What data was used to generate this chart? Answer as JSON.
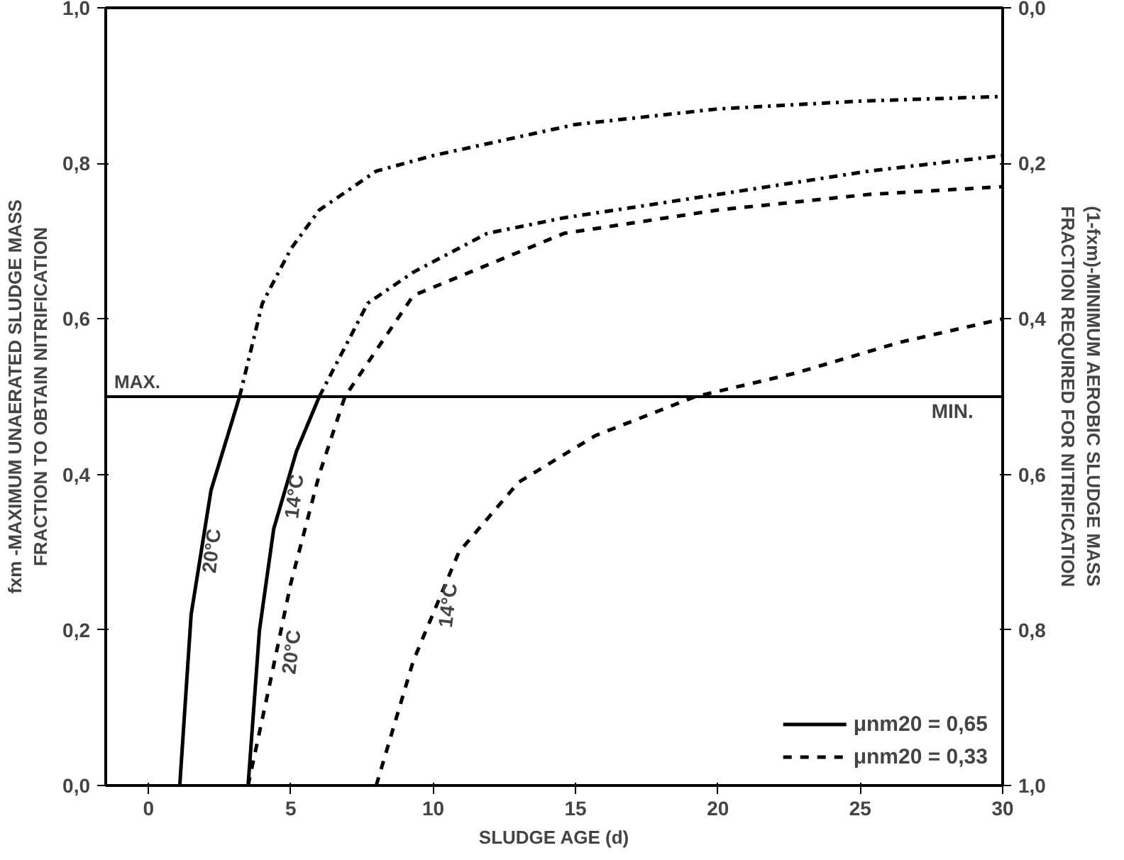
{
  "chart_data": {
    "type": "line",
    "xlabel": "SLUDGE AGE (d)",
    "ylabel": "fxm -MAXIMUM UNAERATED SLUDGE MASS\nFRACTION TO OBTAIN NITRIFICATION",
    "y2label": "(1-fxm)-MINIMUM AEROBIC SLUDGE MASS\nFRACTION REQUIRED FOR NITRIFICATION",
    "xlim": [
      -1.5,
      30
    ],
    "xticks": [
      0,
      5,
      10,
      15,
      20,
      25,
      30
    ],
    "ylim": [
      0,
      1.0
    ],
    "yticks": [
      {
        "value": 0,
        "label": "0,0"
      },
      {
        "value": 0.2,
        "label": "0,2"
      },
      {
        "value": 0.4,
        "label": "0,4"
      },
      {
        "value": 0.6,
        "label": "0,6"
      },
      {
        "value": 0.8,
        "label": "0,8"
      },
      {
        "value": 1.0,
        "label": "1,0"
      }
    ],
    "y2lim": [
      1.0,
      0
    ],
    "y2ticks": [
      {
        "value": 0,
        "label": "0,0"
      },
      {
        "value": 0.2,
        "label": "0,2"
      },
      {
        "value": 0.4,
        "label": "0,4"
      },
      {
        "value": 0.6,
        "label": "0,6"
      },
      {
        "value": 0.8,
        "label": "0,8"
      },
      {
        "value": 1.0,
        "label": "1,0"
      }
    ],
    "grid": false,
    "legend": "bottom right",
    "series": [
      {
        "name": "μnm20 = 0,65",
        "color": "#000000",
        "line_style": "solid",
        "x": [
          1.1,
          1.5,
          2.2,
          3.2
        ],
        "values": [
          0,
          0.22,
          0.38,
          0.5
        ]
      },
      {
        "color": "#000000",
        "line_style": "dashdot",
        "x": [
          3.2,
          4,
          5,
          6,
          8,
          10,
          15,
          20,
          25,
          30
        ],
        "values": [
          0.5,
          0.62,
          0.69,
          0.74,
          0.79,
          0.81,
          0.85,
          0.87,
          0.88,
          0.886
        ]
      },
      {
        "color": "#000000",
        "line_style": "solid",
        "x": [
          3.5,
          3.9,
          4.4,
          5.2,
          6.0
        ],
        "values": [
          0,
          0.2,
          0.33,
          0.43,
          0.5
        ]
      },
      {
        "color": "#000000",
        "line_style": "dashdot",
        "x": [
          6.0,
          7.7,
          9.3,
          11.9,
          14.6,
          20,
          25.3,
          30
        ],
        "values": [
          0.5,
          0.62,
          0.66,
          0.71,
          0.73,
          0.76,
          0.79,
          0.81
        ]
      },
      {
        "name": "μnm20 = 0,33",
        "color": "#000000",
        "line_style": "dashed",
        "x": [
          3.5,
          4.2,
          5.0,
          6.0,
          6.9,
          9.3,
          14.6,
          20,
          25.3,
          30
        ],
        "values": [
          0,
          0.12,
          0.26,
          0.4,
          0.5,
          0.63,
          0.71,
          0.74,
          0.76,
          0.77
        ]
      },
      {
        "color": "#000000",
        "line_style": "dashed",
        "x": [
          8.0,
          9.3,
          10.9,
          13,
          15.7,
          19.2,
          22.7,
          26.4,
          30
        ],
        "values": [
          0,
          0.16,
          0.3,
          0.39,
          0.45,
          0.5,
          0.53,
          0.57,
          0.6
        ]
      }
    ],
    "ref_lines": [
      {
        "axis": "y",
        "value": 0.5,
        "label": "MAX.",
        "color": "#000000",
        "line_style": "solid"
      }
    ],
    "annotations": [
      {
        "text": "MIN.",
        "x": 27.5,
        "y": 0.5
      },
      {
        "text": "20°C",
        "x": 1.8,
        "y": 0.3
      },
      {
        "text": "14°C",
        "x": 4.7,
        "y": 0.37
      },
      {
        "text": "20°C",
        "x": 4.6,
        "y": 0.17
      },
      {
        "text": "14°C",
        "x": 10.1,
        "y": 0.23
      }
    ]
  }
}
